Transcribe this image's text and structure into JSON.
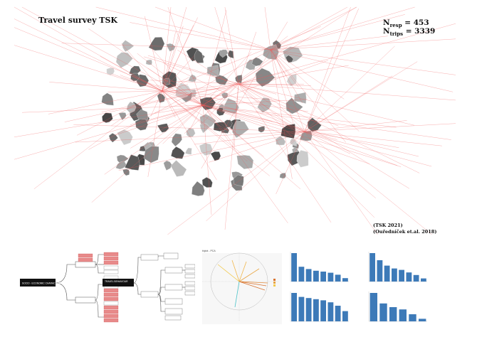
{
  "header": {
    "title": "Travel survey TSK",
    "n_resp_label": "N",
    "n_resp_sub": "resp",
    "n_resp_value": "= 453",
    "n_trips_label": "N",
    "n_trips_sub": "trips",
    "n_trips_value": "= 3339"
  },
  "citations": {
    "line1": "(TSK 2021)",
    "line2": "(Ouředníček et.al. 2018)"
  },
  "colors": {
    "trip_lines": "#f05a5a",
    "district_fill": "#555555",
    "tree_root": "#111111",
    "tree_highlight": "#e88a8a",
    "bars": "#3d7ab8"
  },
  "panels": {
    "tree_socio": {
      "root_label": "SOCIO - ECONOMIC CHARACTERISTIC"
    },
    "tree_travel": {
      "root_label": "TRAVEL BEHAVIOUR"
    },
    "biplot": {
      "title": "biplot - PCA"
    }
  },
  "chart_data": [
    {
      "type": "bar",
      "values": [
        10,
        5.2,
        4.4,
        3.8,
        3.5,
        3.1,
        2.4,
        1.2
      ]
    },
    {
      "type": "bar",
      "values": [
        10,
        7.5,
        5.6,
        4.6,
        4.1,
        3.2,
        2.3,
        1.1
      ]
    },
    {
      "type": "bar",
      "values": [
        10,
        8.6,
        8.2,
        7.8,
        7.4,
        6.7,
        5.5,
        3.6
      ]
    },
    {
      "type": "bar",
      "values": [
        10,
        6.3,
        5.0,
        4.2,
        2.5,
        0.9
      ]
    }
  ]
}
